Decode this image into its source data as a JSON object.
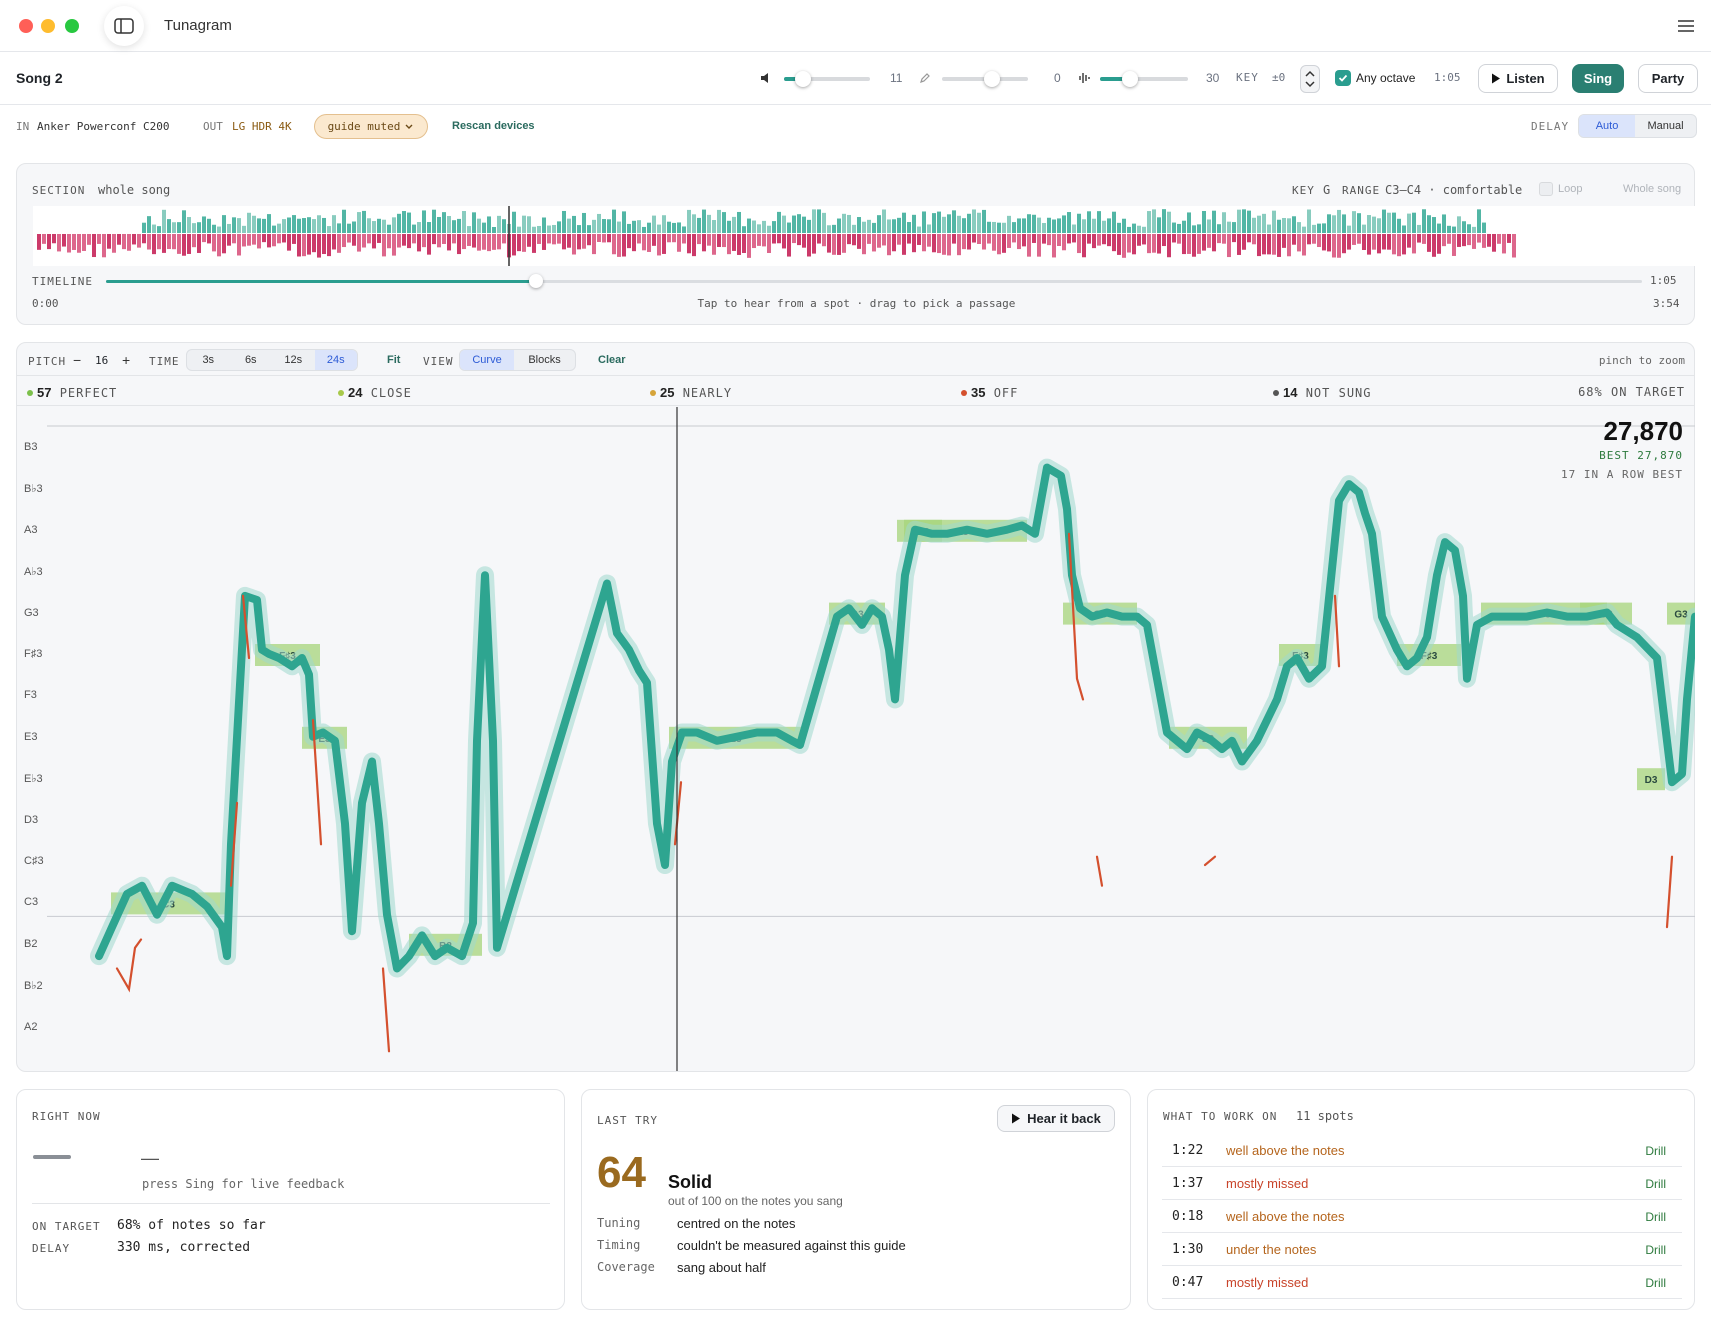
{
  "app": {
    "title": "Tunagram"
  },
  "toolbar": {
    "song_name": "Song 2",
    "volume_value": "11",
    "mic_value": "0",
    "wave_value": "30",
    "volume_level": 0.22,
    "mic_level": 0.58,
    "wave_level": 0.34,
    "key_label": "KEY",
    "key_value": "±0",
    "any_octave_label": "Any octave",
    "any_octave_checked": true,
    "time": "1:05",
    "listen_label": "Listen",
    "sing_label": "Sing",
    "party_label": "Party"
  },
  "devices": {
    "in_label": "IN",
    "in_device": "Anker Powerconf C200",
    "out_label": "OUT",
    "out_device": "LG HDR 4K",
    "guide_label": "guide muted",
    "rescan_label": "Rescan devices",
    "delay_label": "DELAY",
    "delay_options": [
      "Auto",
      "Manual"
    ],
    "delay_selected": "Auto"
  },
  "section": {
    "label": "SECTION",
    "value": "whole song",
    "key_label": "KEY",
    "key_value": "G",
    "range_label": "RANGE",
    "range_value": "C3–C4 · comfortable",
    "loop_label": "Loop",
    "whole_song_label": "Whole song",
    "timeline_label": "TIMELINE",
    "start_time": "0:00",
    "current_time": "1:05",
    "end_time": "3:54",
    "progress": 0.28,
    "hint": "Tap to hear from a spot · drag to pick a passage"
  },
  "pitch_controls": {
    "pitch_label": "PITCH",
    "pitch_minus": "−",
    "pitch_value": "16",
    "pitch_plus": "+",
    "time_label": "TIME",
    "time_options": [
      "3s",
      "6s",
      "12s",
      "24s"
    ],
    "time_selected": "24s",
    "fit_label": "Fit",
    "view_label": "VIEW",
    "view_options": [
      "Curve",
      "Blocks"
    ],
    "view_selected": "Curve",
    "clear_label": "Clear",
    "zoom_hint": "pinch to zoom"
  },
  "stats": [
    {
      "count": "57",
      "label": "PERFECT",
      "color": "#7cc04b"
    },
    {
      "count": "24",
      "label": "CLOSE",
      "color": "#a8c94a"
    },
    {
      "count": "25",
      "label": "NEARLY",
      "color": "#d6a43a"
    },
    {
      "count": "35",
      "label": "OFF",
      "color": "#d4502e"
    },
    {
      "count": "14",
      "label": "NOT SUNG",
      "color": "#555555"
    }
  ],
  "on_target_summary": "68% ON TARGET",
  "score": {
    "value": "27,870",
    "best": "BEST 27,870",
    "streak": "17 IN A ROW BEST"
  },
  "pitch_axis": {
    "labels": [
      "B3",
      "B♭3",
      "A3",
      "A♭3",
      "G3",
      "F♯3",
      "F3",
      "E3",
      "E♭3",
      "D3",
      "C♯3",
      "C3",
      "B2",
      "B♭2",
      "A2"
    ]
  },
  "note_blocks": [
    {
      "label": "C3"
    },
    {
      "label": "F♯3"
    },
    {
      "label": "E3"
    },
    {
      "label": "B2"
    },
    {
      "label": "E3"
    },
    {
      "label": "G3"
    },
    {
      "label": "A3"
    },
    {
      "label": "A3"
    },
    {
      "label": "G3"
    },
    {
      "label": "E3"
    },
    {
      "label": "F♯3"
    },
    {
      "label": "F♯3"
    },
    {
      "label": "G3"
    },
    {
      "label": "G3"
    },
    {
      "label": "D3"
    },
    {
      "label": "G3"
    }
  ],
  "right_now": {
    "title": "RIGHT NOW",
    "dash": "—",
    "hint": "press Sing for live feedback",
    "on_target_label": "ON TARGET",
    "on_target_value": "68% of notes so far",
    "delay_label": "DELAY",
    "delay_value": "330 ms, corrected"
  },
  "last_try": {
    "title": "LAST TRY",
    "hear_label": "Hear it back",
    "score": "64",
    "grade": "Solid",
    "subtitle": "out of 100 on the notes you sang",
    "rows": [
      {
        "k": "Tuning",
        "v": "centred on the notes"
      },
      {
        "k": "Timing",
        "v": "couldn't be measured against this guide"
      },
      {
        "k": "Coverage",
        "v": "sang about half"
      }
    ]
  },
  "work_on": {
    "title": "WHAT TO WORK ON",
    "count": "11 spots",
    "drill_label": "Drill",
    "items": [
      {
        "time": "1:22",
        "desc": "well above the notes",
        "color": "#b5651d"
      },
      {
        "time": "1:37",
        "desc": "mostly missed",
        "color": "#c8442a"
      },
      {
        "time": "0:18",
        "desc": "well above the notes",
        "color": "#b5651d"
      },
      {
        "time": "1:30",
        "desc": "under the notes",
        "color": "#b5651d"
      },
      {
        "time": "0:47",
        "desc": "mostly missed",
        "color": "#c8442a"
      }
    ]
  },
  "colors": {
    "accent": "#2a9d8f",
    "sing_button": "#2a7f72",
    "overshoot": "#d4502e"
  }
}
